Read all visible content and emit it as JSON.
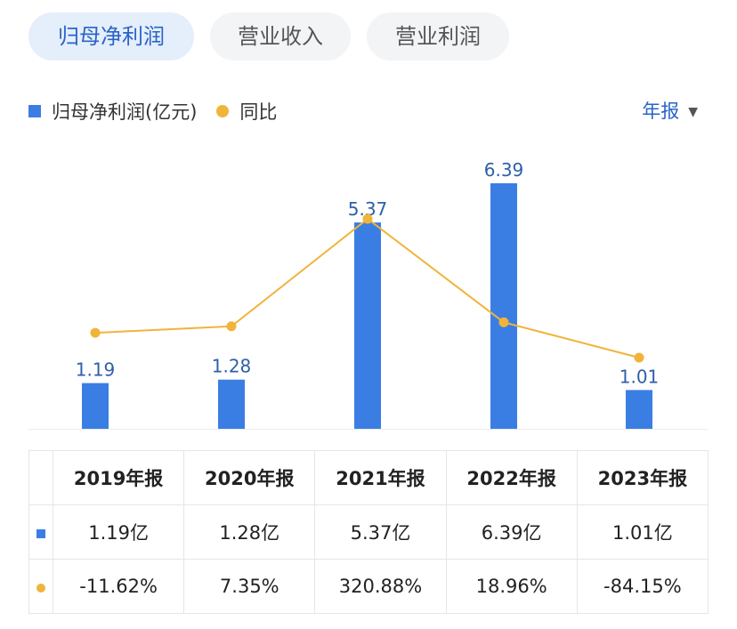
{
  "tabs": [
    {
      "label": "归母净利润",
      "active": true
    },
    {
      "label": "营业收入",
      "active": false
    },
    {
      "label": "营业利润",
      "active": false
    }
  ],
  "legend": {
    "bar_label": "归母净利润(亿元)",
    "line_label": "同比"
  },
  "period_selector": {
    "label": "年报",
    "icon": "caret-down-icon"
  },
  "colors": {
    "bar": "#3a7ee4",
    "line": "#f0b43a",
    "negative": "#1fa86a",
    "positive": "#e05252",
    "accent": "#2a64c8"
  },
  "chart_data": {
    "type": "bar",
    "categories": [
      "2019年报",
      "2020年报",
      "2021年报",
      "2022年报",
      "2023年报"
    ],
    "series": [
      {
        "name": "归母净利润(亿元)",
        "type": "bar",
        "values": [
          1.19,
          1.28,
          5.37,
          6.39,
          1.01
        ],
        "labels": [
          "1.19",
          "1.28",
          "5.37",
          "6.39",
          "1.01"
        ]
      },
      {
        "name": "同比",
        "type": "line",
        "values": [
          -11.62,
          7.35,
          320.88,
          18.96,
          -84.15
        ]
      }
    ]
  },
  "table": {
    "headers": [
      "2019年报",
      "2020年报",
      "2021年报",
      "2022年报",
      "2023年报"
    ],
    "profit_row": [
      "1.19亿",
      "1.28亿",
      "5.37亿",
      "6.39亿",
      "1.01亿"
    ],
    "yoy_row": [
      "-11.62%",
      "7.35%",
      "320.88%",
      "18.96%",
      "-84.15%"
    ]
  }
}
